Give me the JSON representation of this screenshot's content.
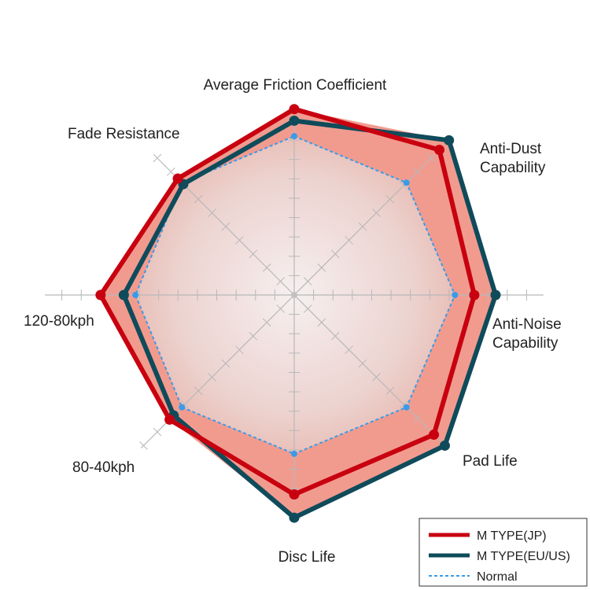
{
  "chart_data": {
    "type": "radar",
    "axes": [
      {
        "key": "friction",
        "label_lines": [
          "Average Friction Coefficient"
        ]
      },
      {
        "key": "dust",
        "label_lines": [
          "Anti-Dust",
          "Capability"
        ]
      },
      {
        "key": "noise",
        "label_lines": [
          "Anti-Noise",
          "Capability"
        ]
      },
      {
        "key": "pad_life",
        "label_lines": [
          "Pad Life"
        ]
      },
      {
        "key": "disc_life",
        "label_lines": [
          "Disc Life"
        ]
      },
      {
        "key": "k80_40",
        "label_lines": [
          "80-40kph"
        ]
      },
      {
        "key": "k120_80",
        "label_lines": [
          "120-80kph"
        ]
      },
      {
        "key": "fade",
        "label_lines": [
          "Fade Resistance"
        ]
      }
    ],
    "range": [
      0,
      13
    ],
    "ticks_per_axis": 13,
    "series": [
      {
        "name": "M TYPE(JP)",
        "color": "#c8000f",
        "style": "solid",
        "values": [
          9.6,
          10.6,
          9.3,
          10.2,
          10.3,
          9.1,
          10.0,
          8.5
        ]
      },
      {
        "name": "M TYPE(EU/US)",
        "color": "#0f4b5a",
        "style": "solid",
        "values": [
          9.0,
          11.3,
          10.4,
          11.0,
          11.5,
          8.8,
          8.8,
          8.1
        ]
      },
      {
        "name": "Normal",
        "color": "#3a9be8",
        "style": "dashed",
        "values": [
          8.2,
          8.2,
          8.3,
          8.2,
          8.2,
          8.2,
          8.2,
          8.2
        ]
      }
    ],
    "fill_color": "#f19b8f",
    "legend_position": "bottom-right"
  }
}
